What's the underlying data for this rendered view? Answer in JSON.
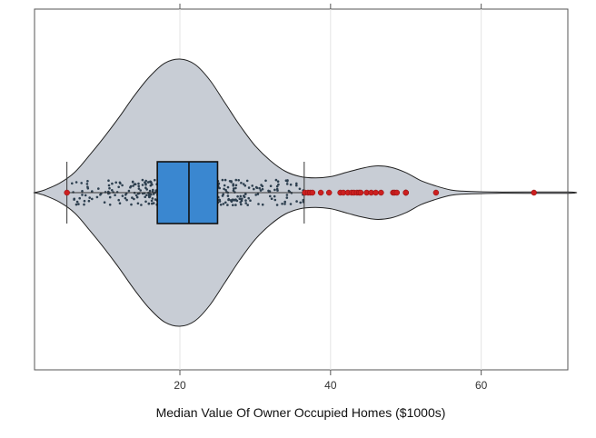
{
  "chart_data": {
    "type": "violin",
    "title": "",
    "xlabel": "Median Value Of Owner Occupied Homes ($1000s)",
    "ylabel": "",
    "xlim": [
      0.7,
      71.5
    ],
    "xticks": [
      20,
      40,
      60
    ],
    "xtick_labels": [
      "20",
      "40",
      "60"
    ],
    "grid": "vertical",
    "violin": {
      "fill": "#c8cdd5",
      "stroke": "#222222",
      "density": [
        [
          0.7,
          0.0
        ],
        [
          2,
          0.02
        ],
        [
          4,
          0.07
        ],
        [
          6,
          0.15
        ],
        [
          8,
          0.28
        ],
        [
          10,
          0.42
        ],
        [
          12,
          0.57
        ],
        [
          14,
          0.73
        ],
        [
          16,
          0.87
        ],
        [
          18,
          0.97
        ],
        [
          20,
          1.0
        ],
        [
          22,
          0.96
        ],
        [
          24,
          0.84
        ],
        [
          26,
          0.67
        ],
        [
          28,
          0.5
        ],
        [
          30,
          0.35
        ],
        [
          32,
          0.24
        ],
        [
          34,
          0.16
        ],
        [
          36,
          0.12
        ],
        [
          38,
          0.11
        ],
        [
          40,
          0.12
        ],
        [
          42,
          0.15
        ],
        [
          44,
          0.18
        ],
        [
          46,
          0.2
        ],
        [
          48,
          0.19
        ],
        [
          50,
          0.15
        ],
        [
          52,
          0.09
        ],
        [
          54,
          0.05
        ],
        [
          56,
          0.02
        ],
        [
          58,
          0.01
        ],
        [
          62,
          0.005
        ],
        [
          71.5,
          0.005
        ]
      ]
    },
    "box": {
      "q1": 17.0,
      "median": 21.2,
      "q3": 25.0,
      "whisker_low": 5.0,
      "whisker_high": 36.5,
      "fill": "#3a87d0"
    },
    "points": {
      "n": 460,
      "range": [
        5.6,
        36.4
      ],
      "mode": 21.0,
      "color": "#2d3f4f"
    },
    "outliers": {
      "color": "#cc1f1f",
      "values": [
        5.0,
        36.6,
        37.0,
        37.3,
        37.6,
        38.7,
        39.8,
        41.3,
        41.7,
        42.3,
        42.8,
        43.1,
        43.5,
        43.8,
        44.0,
        44.8,
        45.4,
        46.0,
        46.7,
        48.3,
        48.5,
        48.8,
        50.0,
        50.0,
        50.0,
        54.0,
        67.0
      ]
    }
  }
}
